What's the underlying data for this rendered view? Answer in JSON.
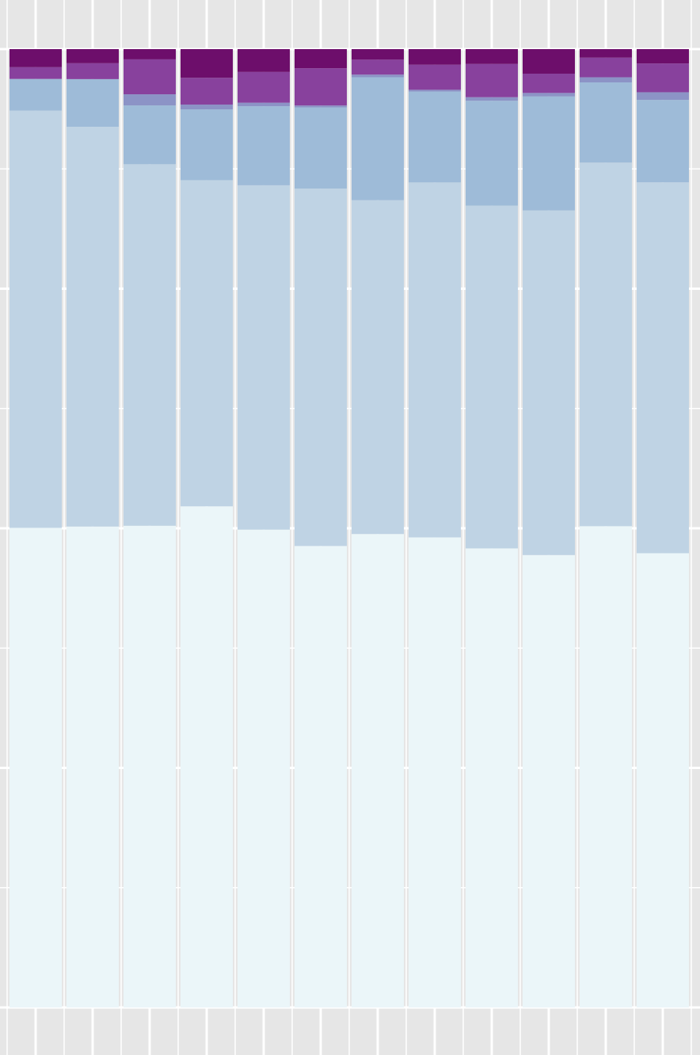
{
  "chart_data": {
    "type": "bar",
    "stacked": true,
    "normalized": true,
    "title": "",
    "xlabel": "",
    "ylabel": "",
    "ylim": [
      0,
      1
    ],
    "grid": true,
    "legend": "none",
    "categories": [
      "",
      "",
      "",
      "",
      "",
      "",
      "",
      "",
      "",
      "",
      "",
      ""
    ],
    "series": [
      {
        "color": "#ebf6f9",
        "values": [
          0.531,
          0.545,
          0.565,
          0.524,
          0.544,
          0.483,
          0.539,
          0.543,
          0.525,
          0.516,
          0.564,
          0.474
        ]
      },
      {
        "color": "#bfd3e4",
        "values": [
          0.462,
          0.453,
          0.424,
          0.341,
          0.392,
          0.374,
          0.38,
          0.41,
          0.392,
          0.393,
          0.426,
          0.387
        ]
      },
      {
        "color": "#9ebbd8",
        "values": [
          0.035,
          0.054,
          0.069,
          0.074,
          0.09,
          0.085,
          0.14,
          0.105,
          0.12,
          0.13,
          0.094,
          0.086
        ]
      },
      {
        "color": "#8c93c6",
        "values": [
          0.0,
          0.0,
          0.013,
          0.005,
          0.004,
          0.002,
          0.003,
          0.002,
          0.004,
          0.004,
          0.006,
          0.008
        ]
      },
      {
        "color": "#88419d",
        "values": [
          0.013,
          0.018,
          0.041,
          0.028,
          0.035,
          0.039,
          0.017,
          0.029,
          0.038,
          0.022,
          0.023,
          0.03
        ]
      },
      {
        "color": "#6d0e6b",
        "values": [
          0.02,
          0.016,
          0.012,
          0.03,
          0.026,
          0.02,
          0.012,
          0.018,
          0.017,
          0.028,
          0.01,
          0.015
        ]
      }
    ]
  }
}
